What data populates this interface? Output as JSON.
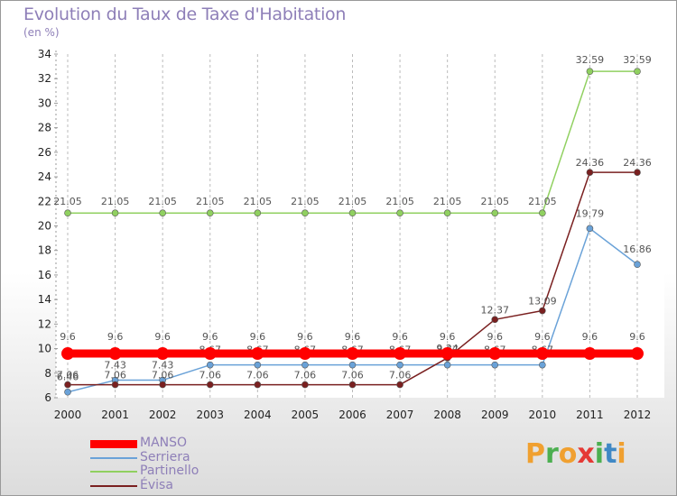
{
  "title": "Evolution du Taux de Taxe d'Habitation",
  "subtitle": "(en %)",
  "logo": {
    "text": "Proxiti",
    "letters": [
      {
        "ch": "P",
        "color": "#f0a030"
      },
      {
        "ch": "r",
        "color": "#4caf50"
      },
      {
        "ch": "o",
        "color": "#f0a030"
      },
      {
        "ch": "x",
        "color": "#e53935"
      },
      {
        "ch": "i",
        "color": "#4caf50"
      },
      {
        "ch": "t",
        "color": "#3f88c5"
      },
      {
        "ch": "i",
        "color": "#f0a030"
      }
    ]
  },
  "chart_data": {
    "type": "line",
    "x": [
      "2000",
      "2001",
      "2002",
      "2003",
      "2004",
      "2005",
      "2006",
      "2007",
      "2008",
      "2009",
      "2010",
      "2011",
      "2012"
    ],
    "ylim": [
      6,
      34
    ],
    "yticks": [
      6,
      8,
      10,
      12,
      14,
      16,
      18,
      20,
      22,
      24,
      26,
      28,
      30,
      32,
      34
    ],
    "grid": "vertical dashed",
    "legend_position": "bottom-left",
    "series": [
      {
        "name": "MANSO",
        "color": "#ff0000",
        "values": [
          9.6,
          9.6,
          9.6,
          9.6,
          9.6,
          9.6,
          9.6,
          9.6,
          9.6,
          9.6,
          9.6,
          9.6,
          9.6
        ],
        "labels": [
          "9.6",
          "9.6",
          "9.6",
          "9.6",
          "9.6",
          "9.6",
          "9.6",
          "9.6",
          "9.6",
          "9.6",
          "9.6",
          "9.6",
          "9.6"
        ]
      },
      {
        "name": "Serriera",
        "color": "#6aa2d8",
        "values": [
          6.46,
          7.43,
          7.43,
          8.67,
          8.67,
          8.67,
          8.67,
          8.67,
          8.67,
          8.67,
          8.67,
          19.79,
          16.86
        ],
        "labels": [
          "6.46",
          "7.43",
          "7.43",
          "8.67",
          "8.67",
          "8.67",
          "8.67",
          "8.67",
          "8.67",
          "8.67",
          "8.67",
          "19.79",
          "16.86"
        ]
      },
      {
        "name": "Partinello",
        "color": "#90d060",
        "values": [
          21.05,
          21.05,
          21.05,
          21.05,
          21.05,
          21.05,
          21.05,
          21.05,
          21.05,
          21.05,
          21.05,
          32.59,
          32.59
        ],
        "labels": [
          "21.05",
          "21.05",
          "21.05",
          "21.05",
          "21.05",
          "21.05",
          "21.05",
          "21.05",
          "21.05",
          "21.05",
          "21.05",
          "32.59",
          "32.59"
        ]
      },
      {
        "name": "Évisa",
        "color": "#7a2020",
        "values": [
          7.06,
          7.06,
          7.06,
          7.06,
          7.06,
          7.06,
          7.06,
          7.06,
          9.24,
          12.37,
          13.09,
          24.36,
          24.36
        ],
        "labels": [
          "7.06",
          "7.06",
          "7.06",
          "7.06",
          "7.06",
          "7.06",
          "7.06",
          "7.06",
          "9.24",
          "12.37",
          "13.09",
          "24.36",
          "24.36"
        ]
      }
    ]
  }
}
